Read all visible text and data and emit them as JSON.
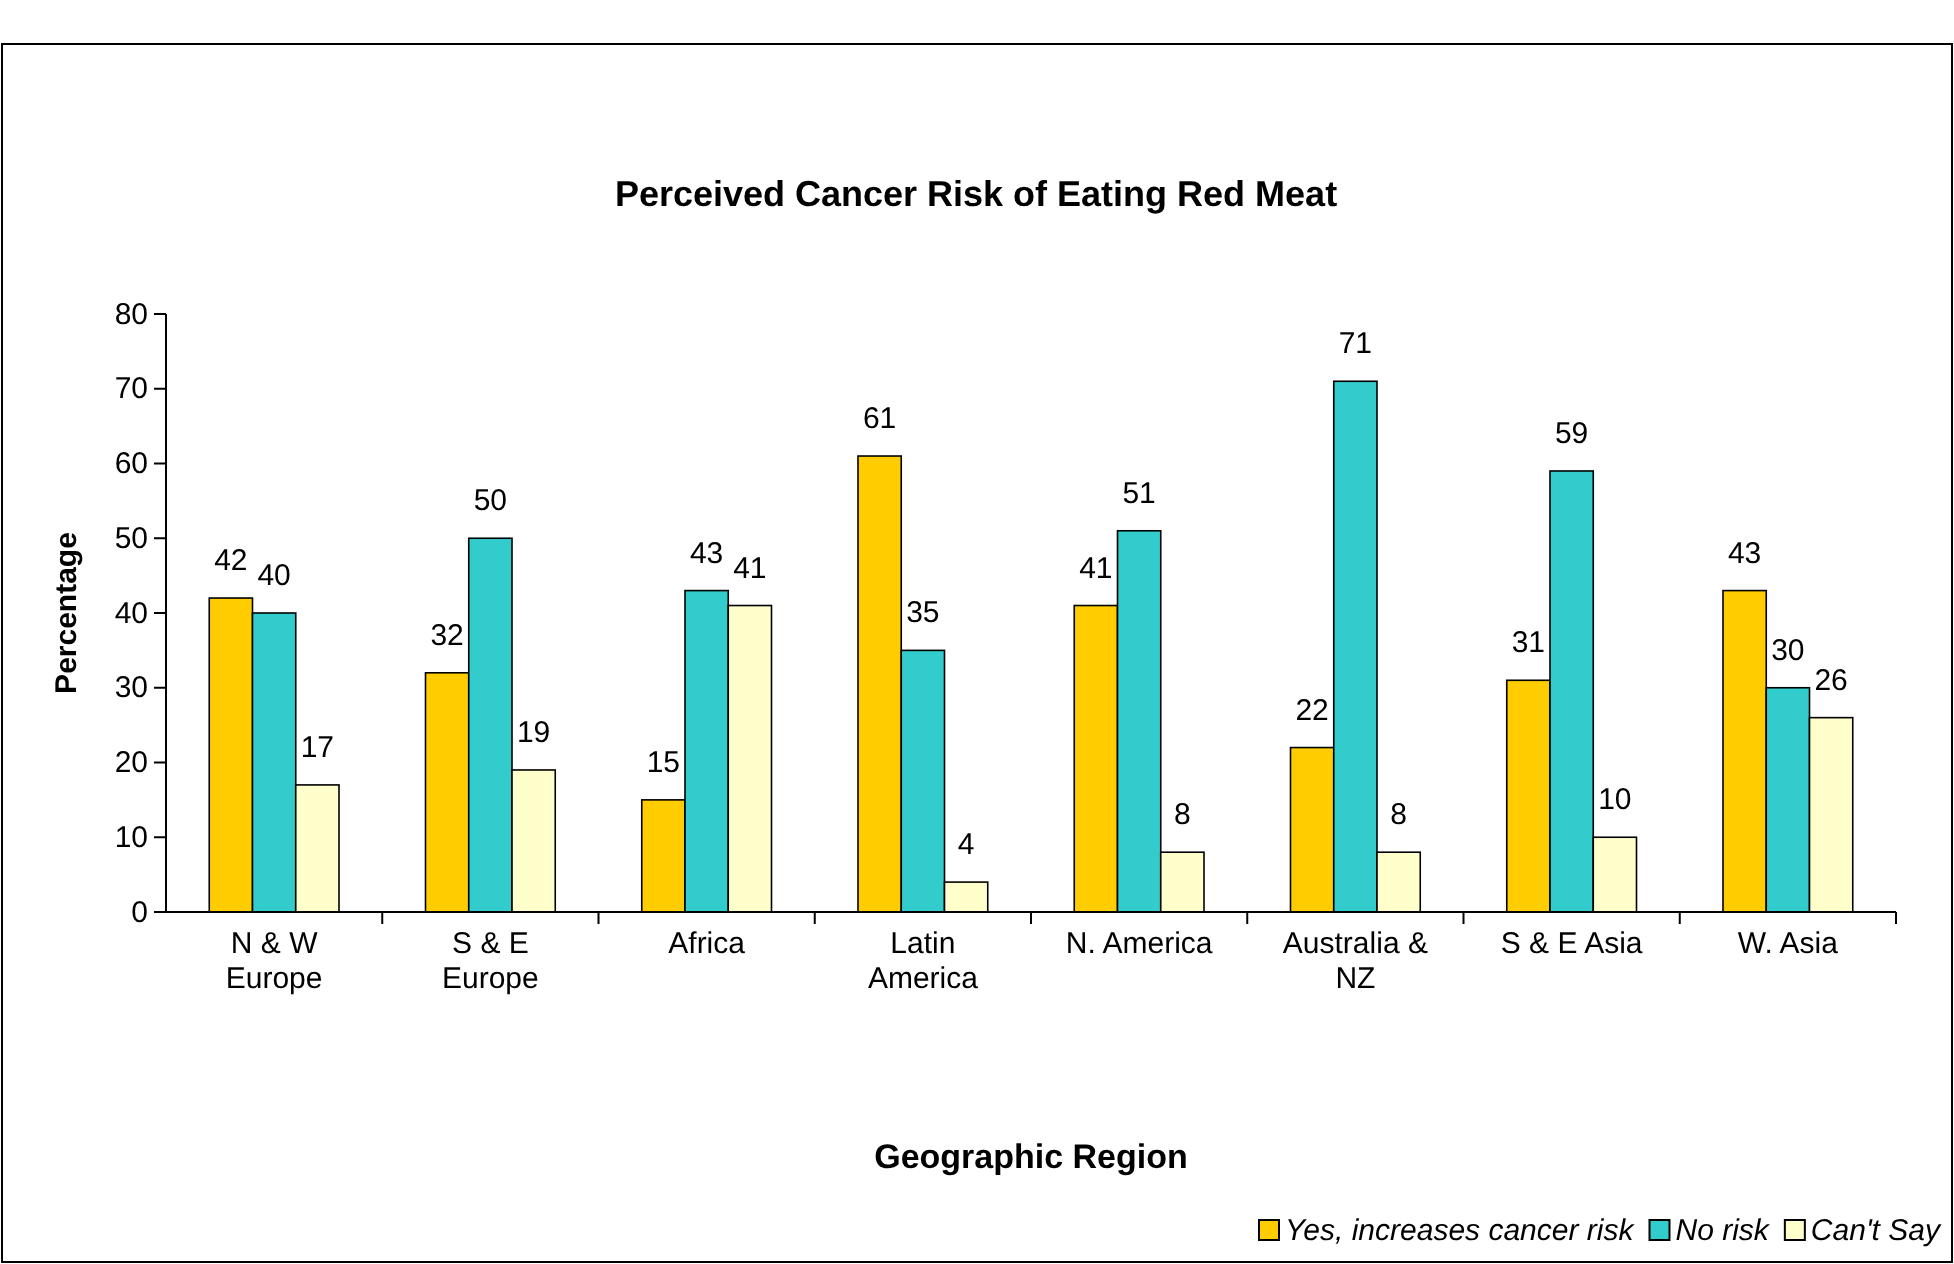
{
  "chart_data": {
    "type": "bar",
    "title": "Perceived Cancer Risk of Eating Red Meat",
    "xlabel": "Geographic Region",
    "ylabel": "Percentage",
    "categories": [
      "N & W Europe",
      "S & E Europe",
      "Africa",
      "Latin America",
      "N. America",
      "Australia & NZ",
      "S & E Asia",
      "W. Asia"
    ],
    "series": [
      {
        "name": "Yes, increases cancer risk",
        "color": "#ffcc00",
        "values": [
          42,
          32,
          15,
          61,
          41,
          22,
          31,
          43
        ]
      },
      {
        "name": "No risk",
        "color": "#33cccc",
        "values": [
          40,
          50,
          43,
          35,
          51,
          71,
          59,
          30
        ]
      },
      {
        "name": "Can't Say",
        "color": "#ffffcc",
        "values": [
          17,
          19,
          41,
          4,
          8,
          8,
          10,
          26
        ]
      }
    ],
    "ylim": [
      0,
      80
    ],
    "yticks": [
      0,
      10,
      20,
      30,
      40,
      50,
      60,
      70,
      80
    ],
    "data_labels": true,
    "legend": "bottom right",
    "grid": false
  }
}
